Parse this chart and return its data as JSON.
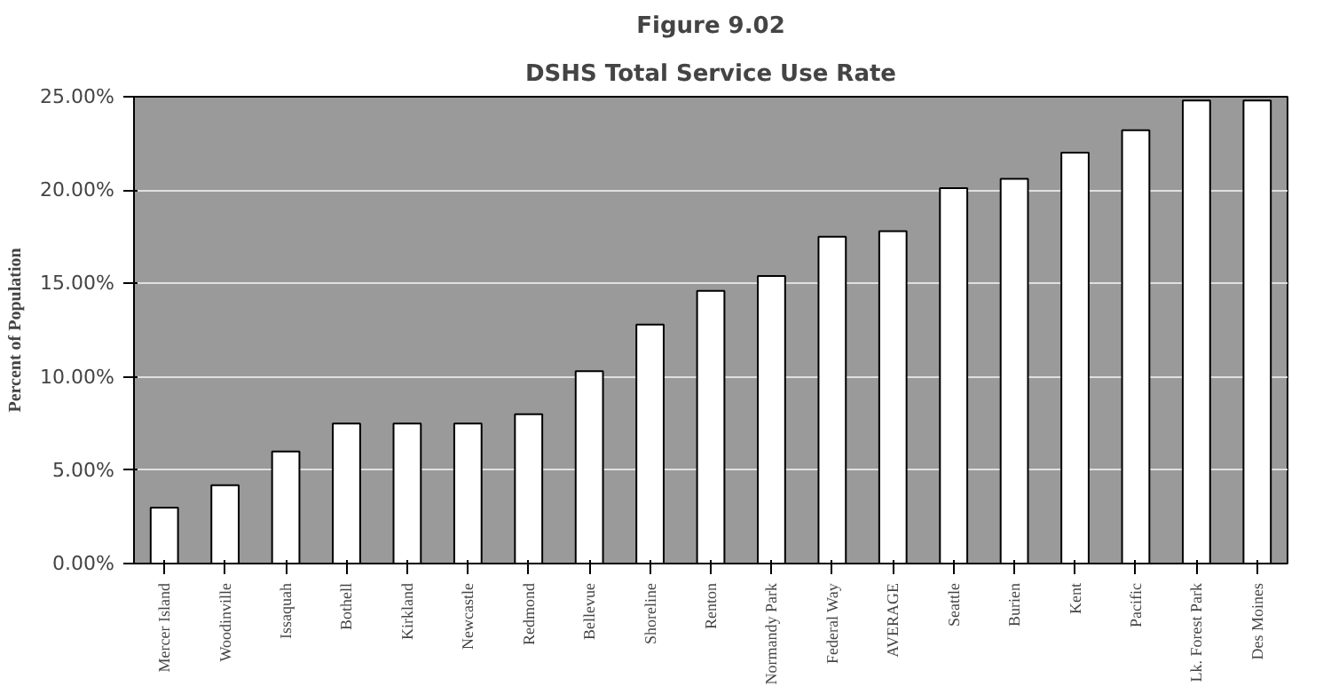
{
  "chart_data": {
    "type": "bar",
    "title": "Figure 9.02",
    "subtitle": "DSHS Total Service Use Rate",
    "ylabel": "Percent of Population",
    "categories": [
      "Mercer Island",
      "Woodinville",
      "Issaquah",
      "Bothell",
      "Kirkland",
      "Newcastle",
      "Redmond",
      "Bellevue",
      "Shoreline",
      "Renton",
      "Normandy Park",
      "Federal Way",
      "AVERAGE",
      "Seattle",
      "Burien",
      "Kent",
      "Pacific",
      "Lk. Forest Park",
      "Des Moines"
    ],
    "values": [
      3.0,
      4.2,
      6.0,
      7.5,
      7.5,
      7.5,
      8.0,
      10.3,
      12.8,
      14.6,
      15.4,
      17.5,
      17.8,
      20.1,
      20.6,
      22.0,
      23.2,
      24.8,
      24.8
    ],
    "color": "#ffffff",
    "ylim": [
      0,
      25
    ],
    "yticks": [
      {
        "value": 0,
        "label": "0.00%"
      },
      {
        "value": 5,
        "label": "5.00%"
      },
      {
        "value": 10,
        "label": "10.00%"
      },
      {
        "value": 15,
        "label": "15.00%"
      },
      {
        "value": 20,
        "label": "20.00%"
      },
      {
        "value": 25,
        "label": "25.00%"
      }
    ],
    "grid": "y"
  }
}
